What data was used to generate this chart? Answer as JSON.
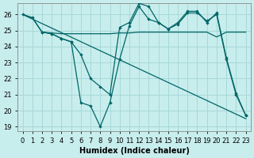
{
  "xlabel": "Humidex (Indice chaleur)",
  "bg_color": "#c8eded",
  "grid_color": "#a8d8d8",
  "line_color": "#006666",
  "series": [
    {
      "x": [
        0,
        1,
        2,
        3,
        4,
        5,
        6,
        7,
        8,
        9,
        10,
        11,
        12,
        13,
        14,
        15,
        16,
        17,
        18,
        19,
        20,
        21,
        22,
        23
      ],
      "y": [
        26,
        25.8,
        24.9,
        24.8,
        24.5,
        24.3,
        20.5,
        20.3,
        19.0,
        20.5,
        23.2,
        25.3,
        26.5,
        25.7,
        25.5,
        25.1,
        25.4,
        26.1,
        26.1,
        25.6,
        26.0,
        23.2,
        21.0,
        19.7
      ],
      "marker": true
    },
    {
      "x": [
        2,
        3,
        4,
        5,
        6,
        7,
        8,
        9,
        10,
        11,
        12,
        13,
        14,
        15,
        16,
        17,
        18,
        19,
        20,
        21,
        22,
        23
      ],
      "y": [
        24.9,
        24.8,
        24.5,
        24.3,
        23.5,
        22.0,
        21.5,
        21.0,
        25.2,
        25.5,
        26.7,
        26.5,
        25.5,
        25.1,
        25.5,
        26.2,
        26.2,
        25.5,
        26.1,
        23.3,
        21.1,
        19.7
      ],
      "marker": true
    },
    {
      "x": [
        0,
        1,
        2,
        3,
        4,
        5,
        6,
        7,
        8,
        9,
        10,
        11,
        12,
        13,
        14,
        15,
        16,
        17,
        18,
        19,
        20,
        21,
        22,
        23
      ],
      "y": [
        26,
        25.8,
        24.9,
        24.85,
        24.8,
        24.8,
        24.8,
        24.8,
        24.8,
        24.8,
        24.85,
        24.85,
        24.9,
        24.9,
        24.9,
        24.9,
        24.9,
        24.9,
        24.9,
        24.9,
        24.6,
        24.9,
        24.9,
        24.9
      ],
      "marker": false
    },
    {
      "x": [
        0,
        23
      ],
      "y": [
        26,
        19.5
      ],
      "marker": false
    }
  ],
  "xlim": [
    -0.5,
    23.5
  ],
  "ylim": [
    18.7,
    26.7
  ],
  "yticks": [
    19,
    20,
    21,
    22,
    23,
    24,
    25,
    26
  ],
  "fontsize_tick": 6,
  "fontsize_label": 7
}
